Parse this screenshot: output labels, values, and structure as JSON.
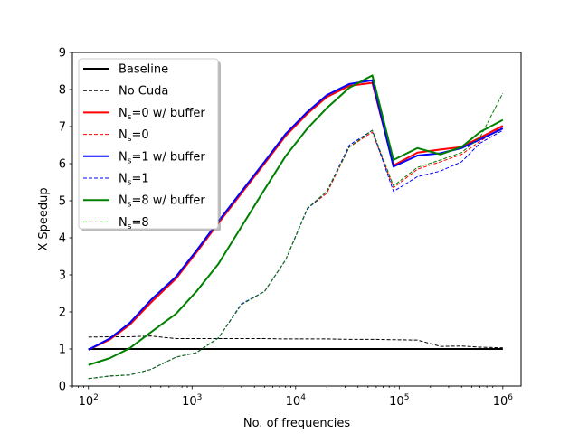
{
  "chart_data": {
    "type": "line",
    "xlabel": "No. of frequencies",
    "ylabel": "X Speedup",
    "xscale": "log",
    "xlim": [
      70,
      1500000
    ],
    "ylim": [
      0,
      9
    ],
    "xticks": [
      100,
      1000,
      10000,
      100000,
      1000000
    ],
    "xtick_labels": [
      {
        "base": "10",
        "exp": "2"
      },
      {
        "base": "10",
        "exp": "3"
      },
      {
        "base": "10",
        "exp": "4"
      },
      {
        "base": "10",
        "exp": "5"
      },
      {
        "base": "10",
        "exp": "6"
      }
    ],
    "yticks": [
      0,
      1,
      2,
      3,
      4,
      5,
      6,
      7,
      8,
      9
    ],
    "grid": false,
    "legend_position": "upper-left",
    "series": [
      {
        "name": "Baseline",
        "sub": "",
        "after": "",
        "color": "#000000",
        "style": "solid",
        "x": [
          100,
          1000000
        ],
        "y": [
          1,
          1
        ]
      },
      {
        "name": "No Cuda",
        "sub": "",
        "after": "",
        "color": "#000000",
        "style": "dashed",
        "x": [
          100,
          160,
          250,
          400,
          700,
          1100,
          1800,
          3000,
          5000,
          8000,
          13000,
          20000,
          33000,
          55000,
          88000,
          150000,
          250000,
          400000,
          600000,
          1000000
        ],
        "y": [
          1.32,
          1.33,
          1.33,
          1.35,
          1.28,
          1.28,
          1.28,
          1.28,
          1.28,
          1.27,
          1.27,
          1.27,
          1.26,
          1.26,
          1.25,
          1.24,
          1.07,
          1.08,
          1.05,
          1.03
        ]
      },
      {
        "name": "N",
        "sub": "s",
        "after": "=0 w/ buffer",
        "color": "#ff0000",
        "style": "solid",
        "x": [
          100,
          160,
          250,
          400,
          700,
          1100,
          1800,
          3000,
          5000,
          8000,
          13000,
          20000,
          33000,
          55000,
          88000,
          150000,
          250000,
          400000,
          600000,
          1000000
        ],
        "y": [
          0.98,
          1.25,
          1.65,
          2.25,
          2.9,
          3.6,
          4.4,
          5.2,
          6.0,
          6.75,
          7.35,
          7.8,
          8.1,
          8.18,
          5.95,
          6.3,
          6.38,
          6.45,
          6.7,
          7.02
        ]
      },
      {
        "name": "N",
        "sub": "s",
        "after": "=0",
        "color": "#ff0000",
        "style": "dashed",
        "x": [
          100,
          160,
          250,
          400,
          700,
          1100,
          1800,
          3000,
          5000,
          8000,
          13000,
          20000,
          33000,
          55000,
          88000,
          150000,
          250000,
          400000,
          600000,
          1000000
        ],
        "y": [
          0.2,
          0.27,
          0.3,
          0.45,
          0.78,
          0.9,
          1.3,
          2.2,
          2.55,
          3.4,
          4.8,
          5.2,
          6.45,
          6.85,
          5.35,
          5.85,
          6.05,
          6.25,
          6.6,
          7.0
        ]
      },
      {
        "name": "N",
        "sub": "s",
        "after": "=1 w/ buffer",
        "color": "#0000ff",
        "style": "solid",
        "x": [
          100,
          160,
          250,
          400,
          700,
          1100,
          1800,
          3000,
          5000,
          8000,
          13000,
          20000,
          33000,
          55000,
          88000,
          150000,
          250000,
          400000,
          600000,
          1000000
        ],
        "y": [
          0.98,
          1.28,
          1.7,
          2.32,
          2.95,
          3.65,
          4.45,
          5.25,
          6.05,
          6.8,
          7.4,
          7.85,
          8.15,
          8.25,
          5.92,
          6.22,
          6.28,
          6.42,
          6.65,
          6.95
        ]
      },
      {
        "name": "N",
        "sub": "s",
        "after": "=1",
        "color": "#0000ff",
        "style": "dashed",
        "x": [
          100,
          160,
          250,
          400,
          700,
          1100,
          1800,
          3000,
          5000,
          8000,
          13000,
          20000,
          33000,
          55000,
          88000,
          150000,
          250000,
          400000,
          600000,
          1000000
        ],
        "y": [
          0.2,
          0.27,
          0.3,
          0.45,
          0.78,
          0.9,
          1.3,
          2.22,
          2.55,
          3.4,
          4.78,
          5.25,
          6.5,
          6.9,
          5.25,
          5.65,
          5.8,
          6.05,
          6.55,
          6.9
        ]
      },
      {
        "name": "N",
        "sub": "s",
        "after": "=8 w/ buffer",
        "color": "#008000",
        "style": "solid",
        "x": [
          100,
          160,
          250,
          400,
          700,
          1100,
          1800,
          3000,
          5000,
          8000,
          13000,
          20000,
          33000,
          55000,
          88000,
          150000,
          250000,
          400000,
          600000,
          1000000
        ],
        "y": [
          0.57,
          0.75,
          1.02,
          1.45,
          1.95,
          2.55,
          3.3,
          4.3,
          5.3,
          6.2,
          6.95,
          7.5,
          8.05,
          8.38,
          6.1,
          6.42,
          6.25,
          6.45,
          6.85,
          7.18
        ]
      },
      {
        "name": "N",
        "sub": "s",
        "after": "=8",
        "color": "#008000",
        "style": "dashed",
        "x": [
          100,
          160,
          250,
          400,
          700,
          1100,
          1800,
          3000,
          5000,
          8000,
          13000,
          20000,
          33000,
          55000,
          88000,
          150000,
          250000,
          400000,
          600000,
          1000000
        ],
        "y": [
          0.2,
          0.27,
          0.3,
          0.45,
          0.78,
          0.9,
          1.3,
          2.2,
          2.55,
          3.4,
          4.8,
          5.25,
          6.45,
          6.9,
          5.4,
          5.9,
          6.1,
          6.3,
          6.7,
          7.9
        ]
      }
    ]
  }
}
